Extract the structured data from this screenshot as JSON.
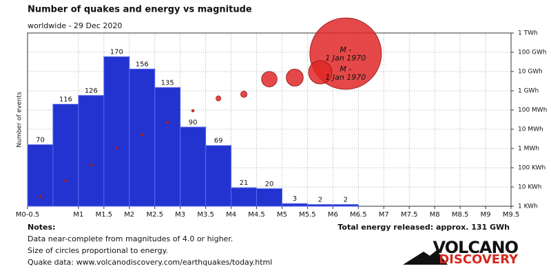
{
  "chart_data": {
    "type": "histogram",
    "title": "Number of quakes and energy vs magnitude",
    "subtitle": "worldwide - 29 Dec 2020",
    "ylabel": "Number of events",
    "bins": [
      0,
      0.5,
      1,
      1.5,
      2,
      2.5,
      3,
      3.5,
      4,
      4.5,
      5,
      5.5,
      6,
      6.5
    ],
    "values": [
      70,
      116,
      126,
      170,
      156,
      135,
      90,
      69,
      21,
      20,
      3,
      2,
      2
    ],
    "color": "#2333cf",
    "xlim": [
      0,
      9.5
    ],
    "xticks": [
      {
        "value": 0,
        "label": "M0-0.5"
      },
      {
        "value": 1,
        "label": "M1"
      },
      {
        "value": 1.5,
        "label": "M1.5"
      },
      {
        "value": 2,
        "label": "M2"
      },
      {
        "value": 2.5,
        "label": "M2.5"
      },
      {
        "value": 3,
        "label": "M3"
      },
      {
        "value": 3.5,
        "label": "M3.5"
      },
      {
        "value": 4,
        "label": "M4"
      },
      {
        "value": 4.5,
        "label": "M4.5"
      },
      {
        "value": 5,
        "label": "M5"
      },
      {
        "value": 5.5,
        "label": "M5.5"
      },
      {
        "value": 6,
        "label": "M6"
      },
      {
        "value": 6.5,
        "label": "M6.5"
      },
      {
        "value": 7,
        "label": "M7"
      },
      {
        "value": 7.5,
        "label": "M7.5"
      },
      {
        "value": 8,
        "label": "M8"
      },
      {
        "value": 8.5,
        "label": "M8.5"
      },
      {
        "value": 9,
        "label": "M9"
      },
      {
        "value": 9.5,
        "label": "M9.5"
      }
    ],
    "ylim": [
      0,
      197
    ],
    "y2lim": [
      1000,
      1000000000000
    ],
    "y2log": true,
    "y2ticks": [
      {
        "value": 1000,
        "label": "1 KWh"
      },
      {
        "value": 10000,
        "label": "10 KWh"
      },
      {
        "value": 100000,
        "label": "100 KWh"
      },
      {
        "value": 1000000,
        "label": "1 MWh"
      },
      {
        "value": 10000000,
        "label": "10 MWh"
      },
      {
        "value": 100000000,
        "label": "100 MWh"
      },
      {
        "value": 1000000000,
        "label": "1 GWh"
      },
      {
        "value": 10000000000,
        "label": "10 GWh"
      },
      {
        "value": 100000000000,
        "label": "100 GWh"
      },
      {
        "value": 1000000000000,
        "label": "1 TWh"
      }
    ],
    "grid": true,
    "energy": {
      "type": "bubble",
      "axis": "y2",
      "color": "#e02828",
      "values": [
        3200,
        21000,
        140000,
        1100000,
        5200000,
        23000000,
        92000000,
        400000000,
        660000000,
        4000000000,
        4800000000,
        9100000000,
        85000000000
      ]
    },
    "annotations": [
      {
        "lines": [
          "M -",
          "1 Jan 1970"
        ],
        "x": 6.25,
        "y": 78000000000
      },
      {
        "lines": [
          "M -",
          "1 Jan 1970"
        ],
        "x": 6.25,
        "y": 7800000000
      }
    ],
    "total_energy": "Total energy released: approx. 131 GWh"
  },
  "notes": {
    "heading": "Notes:",
    "lines": [
      "Data near-complete from magnitudes of 4.0 or higher.",
      "Size of circles proportional to energy.",
      "Quake data: www.volcanodiscovery.com/earthquakes/today.html"
    ]
  },
  "logo": {
    "top": "VOLCANO",
    "bottom": "DISCOVERY"
  }
}
